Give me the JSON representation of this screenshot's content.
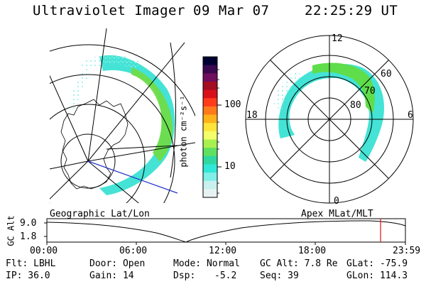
{
  "header": {
    "instrument": "Ultraviolet Imager",
    "date": "09 Mar 07",
    "time": "22:25:29 UT"
  },
  "left_panel": {
    "caption": "Geographic Lat/Lon"
  },
  "right_panel": {
    "caption": "Apex MLat/MLT",
    "mlt_labels": {
      "top": "12",
      "bottom": "0",
      "left": "18",
      "right": "6"
    },
    "lat_labels": [
      "60",
      "70",
      "80"
    ]
  },
  "colorbar": {
    "unit_label": "photon cm⁻²s⁻¹",
    "ticks": [
      "100",
      "10"
    ],
    "colors": [
      "#000033",
      "#3a0850",
      "#700e60",
      "#a30e20",
      "#d8101a",
      "#ff3b1a",
      "#ff7a1a",
      "#ffb21a",
      "#ffe43a",
      "#f3ff6a",
      "#a8f050",
      "#5fe060",
      "#2fd8a0",
      "#30e8d8",
      "#7fefe8",
      "#c8f0ee",
      "#e8f2f2"
    ]
  },
  "timeline": {
    "ylabel": "GC Alt",
    "yticks": [
      "9.0",
      "1.8"
    ],
    "xticks": [
      "00:00",
      "06:00",
      "12:00",
      "18:00",
      "23:59"
    ],
    "marker_color": "#e01010"
  },
  "footer": {
    "filter": "Flt: LBHL",
    "ip": "IP: 36.0",
    "door": "Door: Open",
    "gain": "Gain: 14",
    "mode": "Mode: Normal",
    "dsp_label": "Dsp:",
    "dsp_value": "-5.2",
    "gcalt": "GC Alt: 7.8 Re",
    "seq": "Seq: 39",
    "glat": "GLat: -75.9",
    "glon": "GLon: 114.3"
  }
}
